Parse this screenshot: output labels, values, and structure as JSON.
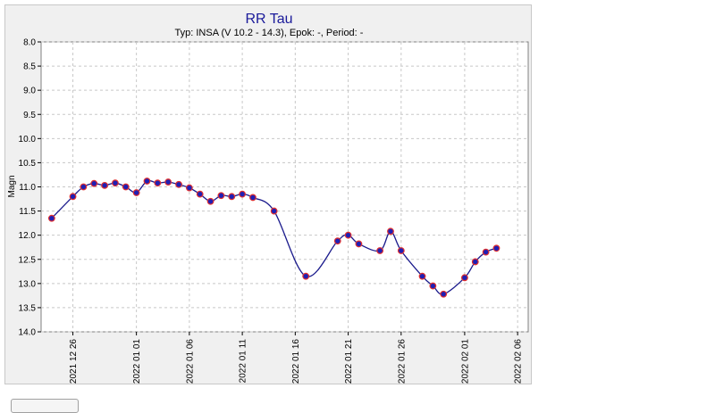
{
  "chart_data": {
    "type": "scatter",
    "title": "RR Tau",
    "subtitle": "Typ: INSA (V 10.2 - 14.3), Epok: -, Period: -",
    "xlabel": "",
    "ylabel": "Magn",
    "ylim": [
      14.0,
      8.0
    ],
    "y_inverted": true,
    "yticks": [
      "8.0",
      "8.5",
      "9.0",
      "9.5",
      "10.0",
      "10.5",
      "11.0",
      "11.5",
      "12.0",
      "12.5",
      "13.0",
      "13.5",
      "14.0"
    ],
    "xlim": [
      "2021-12-23",
      "2022-02-07"
    ],
    "xticks": [
      "2021 12 26",
      "2022 01 01",
      "2022 01 06",
      "2022 01 11",
      "2022 01 16",
      "2022 01 21",
      "2022 01 26",
      "2022 02 01",
      "2022 02 06"
    ],
    "grid": true,
    "colors": {
      "points": "#1f1fb4",
      "points_edge": "#e03030",
      "curve": "#1a1a8c",
      "grid": "#c8c8c8"
    },
    "series": [
      {
        "values": [
          [
            "2021-12-24",
            11.65
          ],
          [
            "2021-12-26",
            11.2
          ],
          [
            "2021-12-27",
            11.0
          ],
          [
            "2021-12-28",
            10.93
          ],
          [
            "2021-12-29",
            10.97
          ],
          [
            "2021-12-30",
            10.92
          ],
          [
            "2021-12-31",
            11.0
          ],
          [
            "2022-01-01",
            11.12
          ],
          [
            "2022-01-02",
            10.88
          ],
          [
            "2022-01-03",
            10.92
          ],
          [
            "2022-01-04",
            10.9
          ],
          [
            "2022-01-05",
            10.95
          ],
          [
            "2022-01-06",
            11.02
          ],
          [
            "2022-01-07",
            11.15
          ],
          [
            "2022-01-08",
            11.3
          ],
          [
            "2022-01-09",
            11.18
          ],
          [
            "2022-01-10",
            11.2
          ],
          [
            "2022-01-11",
            11.15
          ],
          [
            "2022-01-12",
            11.22
          ],
          [
            "2022-01-14",
            11.5
          ],
          [
            "2022-01-17",
            12.85
          ],
          [
            "2022-01-20",
            12.12
          ],
          [
            "2022-01-21",
            12.0
          ],
          [
            "2022-01-22",
            12.18
          ],
          [
            "2022-01-24",
            12.32
          ],
          [
            "2022-01-25",
            11.92
          ],
          [
            "2022-01-26",
            12.32
          ],
          [
            "2022-01-28",
            12.85
          ],
          [
            "2022-01-29",
            13.05
          ],
          [
            "2022-01-30",
            13.22
          ],
          [
            "2022-02-01",
            12.88
          ],
          [
            "2022-02-02",
            12.55
          ],
          [
            "2022-02-03",
            12.35
          ],
          [
            "2022-02-04",
            12.27
          ]
        ]
      }
    ]
  }
}
